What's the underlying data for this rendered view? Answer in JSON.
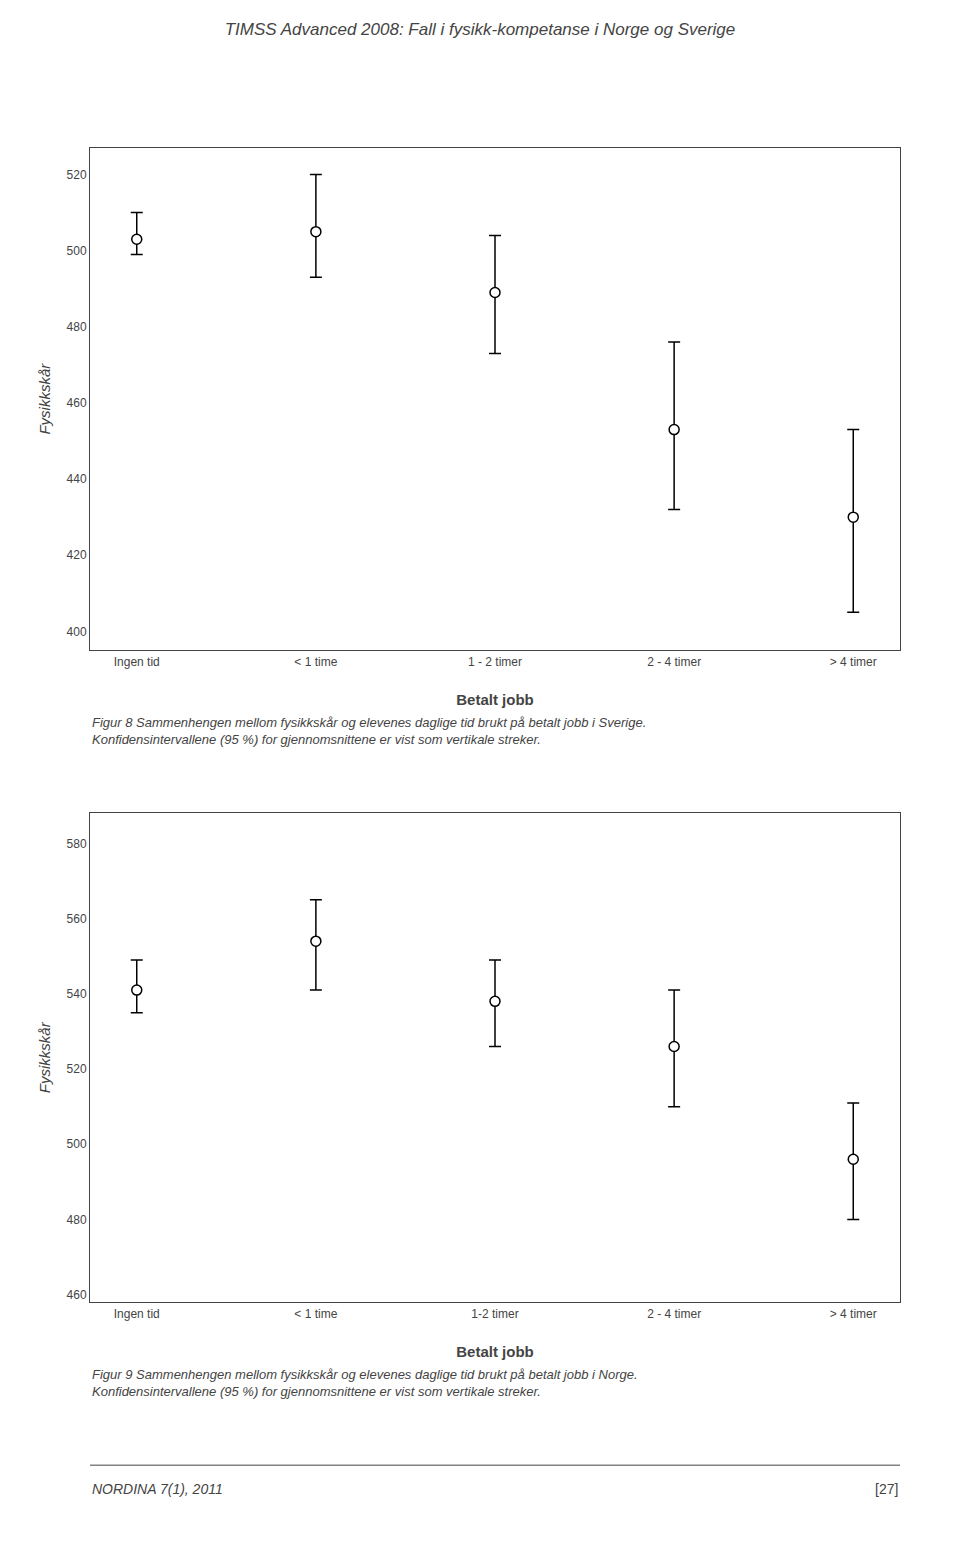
{
  "title": "TIMSS Advanced 2008: Fall i fysikk-kompetanse i Norge og Sverige",
  "annotations": [
    "NORDINA 7(1), 2011",
    "[27]"
  ],
  "chart_data": [
    {
      "type": "scatter",
      "xlabel": "Betalt jobb",
      "ylabel": "Fysikkskår",
      "categories": [
        "Ingen tid",
        "< 1 time",
        "1 - 2 timer",
        "2 - 4 timer",
        "> 4 timer"
      ],
      "values": [
        503,
        505,
        489,
        453,
        430
      ],
      "ci_upper": [
        510,
        520,
        504,
        476,
        453
      ],
      "ci_lower": [
        499,
        493,
        473,
        432,
        405
      ],
      "ylim": [
        395,
        527
      ],
      "yticks": [
        400,
        420,
        440,
        460,
        480,
        500,
        520
      ],
      "color": "black",
      "marker": "circle",
      "grid": false,
      "annotations": [
        "Figur 8 Sammenhengen mellom fysikkskår og elevenes daglige tid brukt på betalt jobb i Sverige.",
        "Konfidensintervallene (95 %) for gjennomsnittene er vist som vertikale streker."
      ]
    },
    {
      "type": "scatter",
      "xlabel": "Betalt jobb",
      "ylabel": "Fysikkskår",
      "categories": [
        "Ingen tid",
        "< 1 time",
        "1-2 timer",
        "2 - 4 timer",
        "> 4 timer"
      ],
      "values": [
        541,
        554,
        538,
        526,
        496
      ],
      "ci_upper": [
        549,
        565,
        549,
        541,
        511
      ],
      "ci_lower": [
        535,
        541,
        526,
        510,
        480
      ],
      "ylim": [
        458,
        588
      ],
      "yticks": [
        460,
        480,
        500,
        520,
        540,
        560,
        580
      ],
      "color": "black",
      "marker": "circle",
      "grid": false,
      "annotations": [
        "Figur 9 Sammenhengen mellom fysikkskår og elevenes daglige tid brukt på betalt jobb i Norge.",
        "Konfidensintervallene (95 %) for gjennomsnittene er vist som vertikale streker."
      ]
    }
  ]
}
